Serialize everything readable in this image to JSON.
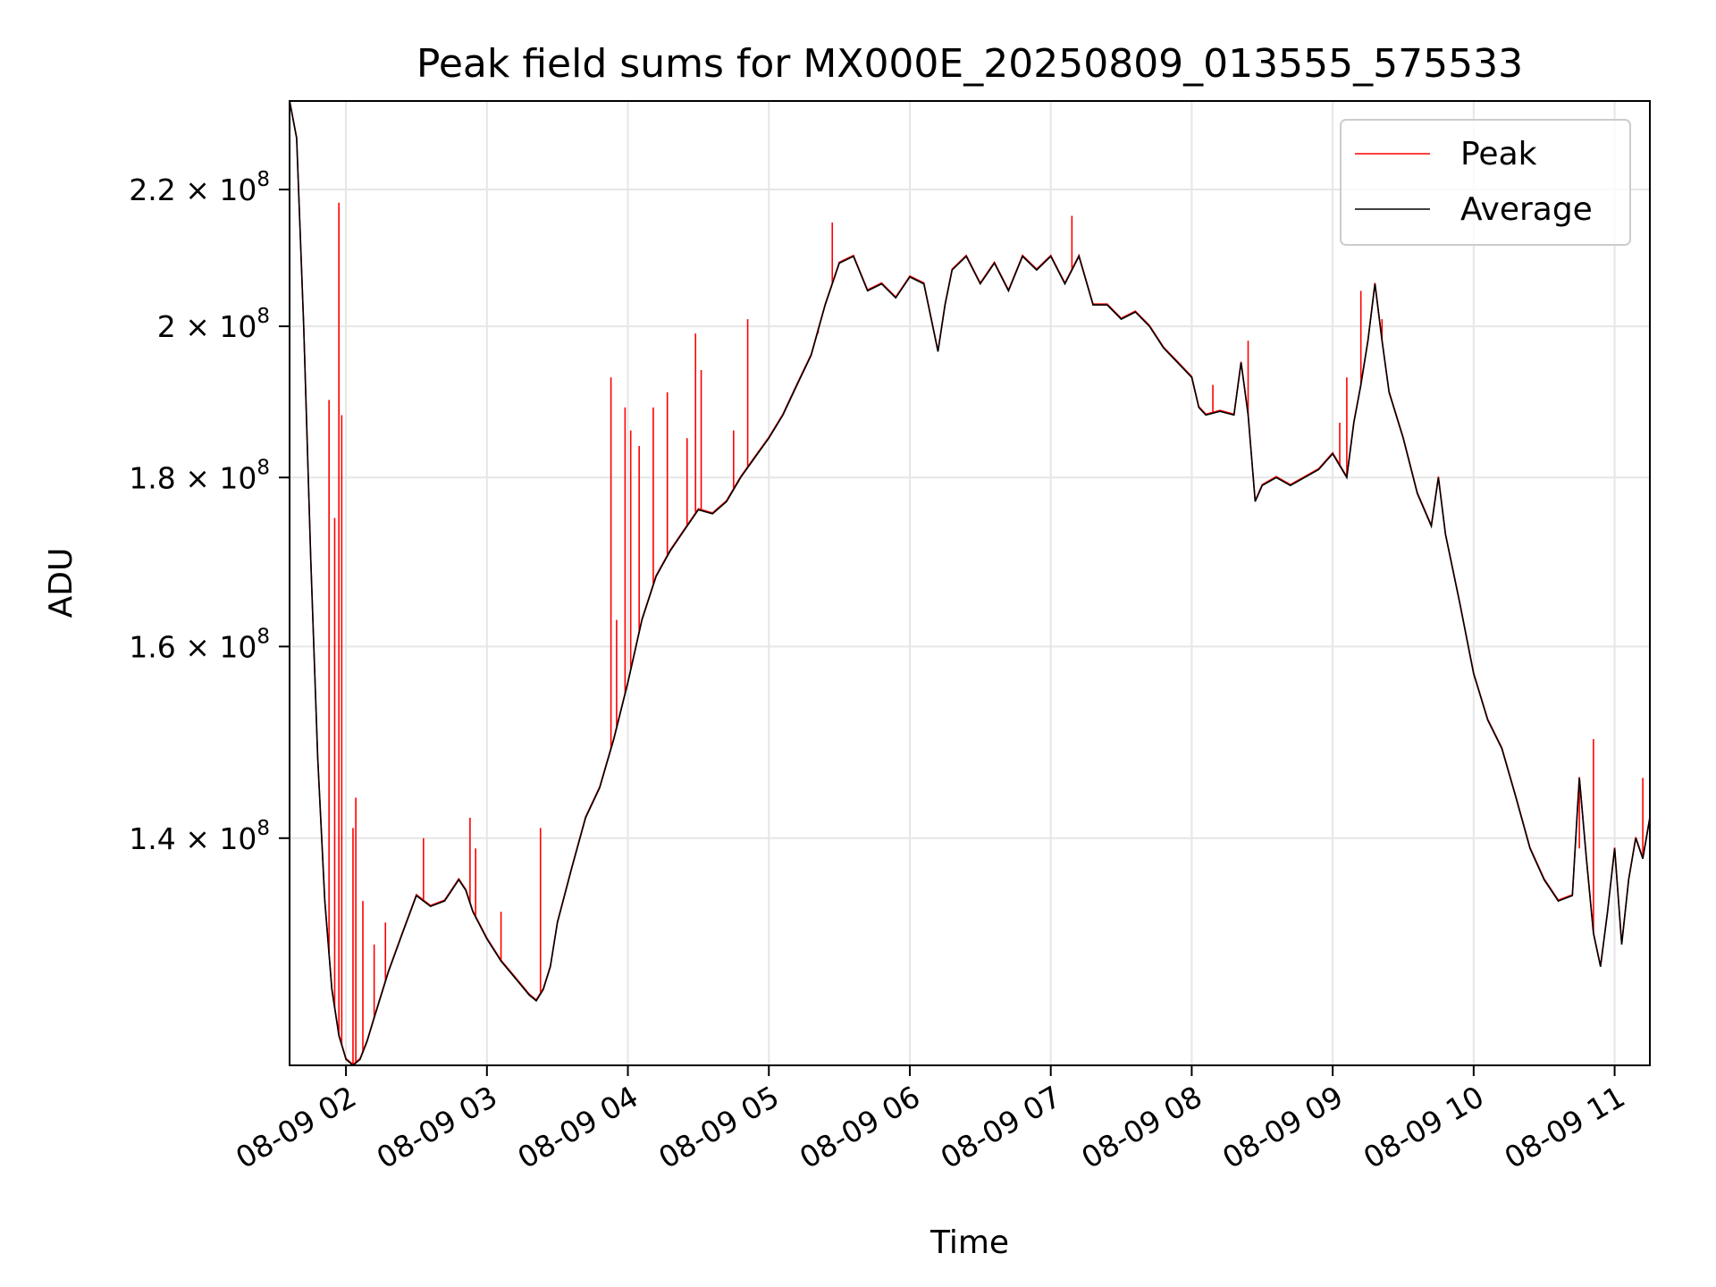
{
  "chart_data": {
    "type": "line",
    "title": "Peak field sums for MX000E_20250809_013555_575533",
    "xlabel": "Time",
    "ylabel": "ADU",
    "x_ticks": [
      "08-09 02",
      "08-09 03",
      "08-09 04",
      "08-09 05",
      "08-09 06",
      "08-09 07",
      "08-09 08",
      "08-09 09",
      "08-09 10",
      "08-09 11"
    ],
    "x_tick_hours": [
      2,
      3,
      4,
      5,
      6,
      7,
      8,
      9,
      10,
      11
    ],
    "y_ticks": [
      {
        "value": 140000000,
        "mantissa": "1.4",
        "exp": "8"
      },
      {
        "value": 160000000,
        "mantissa": "1.6",
        "exp": "8"
      },
      {
        "value": 180000000,
        "mantissa": "1.8",
        "exp": "8"
      },
      {
        "value": 200000000,
        "mantissa": "2",
        "exp": "8"
      },
      {
        "value": 220000000,
        "mantissa": "2.2",
        "exp": "8"
      }
    ],
    "y_scale": "log",
    "xlim_hours": [
      1.6,
      11.25
    ],
    "ylim": [
      119500000,
      234000000
    ],
    "grid": true,
    "legend_position": "top-right",
    "series": [
      {
        "name": "Average",
        "color": "#000000",
        "hours": [
          1.6,
          1.65,
          1.7,
          1.75,
          1.8,
          1.85,
          1.9,
          1.95,
          2.0,
          2.05,
          2.1,
          2.15,
          2.2,
          2.3,
          2.4,
          2.5,
          2.55,
          2.6,
          2.7,
          2.8,
          2.85,
          2.9,
          3.0,
          3.1,
          3.2,
          3.3,
          3.35,
          3.4,
          3.45,
          3.5,
          3.6,
          3.7,
          3.8,
          3.9,
          4.0,
          4.1,
          4.2,
          4.3,
          4.4,
          4.5,
          4.6,
          4.7,
          4.8,
          4.9,
          5.0,
          5.1,
          5.2,
          5.3,
          5.4,
          5.5,
          5.6,
          5.7,
          5.8,
          5.9,
          6.0,
          6.1,
          6.2,
          6.25,
          6.3,
          6.4,
          6.5,
          6.6,
          6.7,
          6.8,
          6.9,
          7.0,
          7.1,
          7.2,
          7.3,
          7.4,
          7.5,
          7.6,
          7.7,
          7.8,
          7.9,
          8.0,
          8.05,
          8.1,
          8.2,
          8.3,
          8.35,
          8.4,
          8.45,
          8.5,
          8.6,
          8.7,
          8.8,
          8.9,
          9.0,
          9.1,
          9.15,
          9.2,
          9.25,
          9.3,
          9.35,
          9.4,
          9.5,
          9.6,
          9.7,
          9.75,
          9.8,
          9.9,
          10.0,
          10.1,
          10.2,
          10.3,
          10.4,
          10.5,
          10.6,
          10.7,
          10.75,
          10.8,
          10.85,
          10.9,
          10.95,
          11.0,
          11.05,
          11.1,
          11.15,
          11.2,
          11.25
        ],
        "values": [
          234000000,
          228000000,
          200000000,
          170000000,
          148000000,
          134000000,
          126000000,
          122000000,
          120000000,
          119500000,
          120000000,
          121500000,
          123500000,
          127500000,
          131000000,
          134500000,
          134000000,
          133500000,
          134000000,
          136000000,
          135000000,
          133000000,
          130500000,
          128500000,
          127000000,
          125500000,
          125000000,
          126000000,
          128000000,
          132000000,
          137000000,
          142000000,
          145000000,
          150000000,
          156000000,
          163000000,
          168000000,
          171000000,
          173500000,
          176000000,
          175500000,
          177000000,
          180000000,
          182500000,
          185000000,
          188000000,
          192000000,
          196000000,
          203000000,
          209000000,
          210000000,
          205000000,
          206000000,
          204000000,
          207000000,
          206000000,
          196500000,
          203000000,
          208000000,
          210000000,
          206000000,
          209000000,
          205000000,
          210000000,
          208000000,
          210000000,
          206000000,
          210000000,
          203000000,
          203000000,
          201000000,
          202000000,
          200000000,
          197000000,
          195000000,
          193000000,
          189000000,
          188000000,
          188500000,
          188000000,
          195000000,
          188000000,
          177000000,
          179000000,
          180000000,
          179000000,
          180000000,
          181000000,
          183000000,
          180000000,
          187000000,
          192000000,
          198000000,
          206000000,
          198000000,
          191000000,
          185000000,
          178000000,
          174000000,
          180000000,
          173000000,
          165000000,
          157000000,
          152000000,
          149000000,
          144000000,
          139000000,
          136000000,
          134000000,
          134500000,
          146000000,
          138000000,
          131000000,
          128000000,
          133000000,
          139000000,
          130000000,
          136000000,
          140000000,
          138000000,
          142000000
        ]
      },
      {
        "name": "Peak",
        "color": "#ff0000",
        "spike_hours": [
          1.88,
          1.92,
          1.95,
          1.97,
          2.05,
          2.07,
          2.12,
          2.2,
          2.28,
          2.55,
          2.88,
          2.92,
          3.1,
          3.38,
          3.88,
          3.92,
          3.98,
          4.02,
          4.08,
          4.18,
          4.28,
          4.42,
          4.48,
          4.52,
          4.75,
          4.85,
          5.35,
          5.45,
          7.15,
          8.15,
          8.4,
          9.05,
          9.1,
          9.2,
          9.35,
          10.75,
          10.85,
          11.2
        ],
        "spike_values": [
          190000000,
          175000000,
          218000000,
          188000000,
          141000000,
          144000000,
          134000000,
          130000000,
          132000000,
          140000000,
          142000000,
          139000000,
          133000000,
          141000000,
          193000000,
          163000000,
          189000000,
          186000000,
          184000000,
          189000000,
          191000000,
          185000000,
          199000000,
          194000000,
          186000000,
          201000000,
          199000000,
          215000000,
          216000000,
          192000000,
          198000000,
          187000000,
          193000000,
          205000000,
          201000000,
          139000000,
          150000000,
          146000000
        ]
      }
    ]
  }
}
